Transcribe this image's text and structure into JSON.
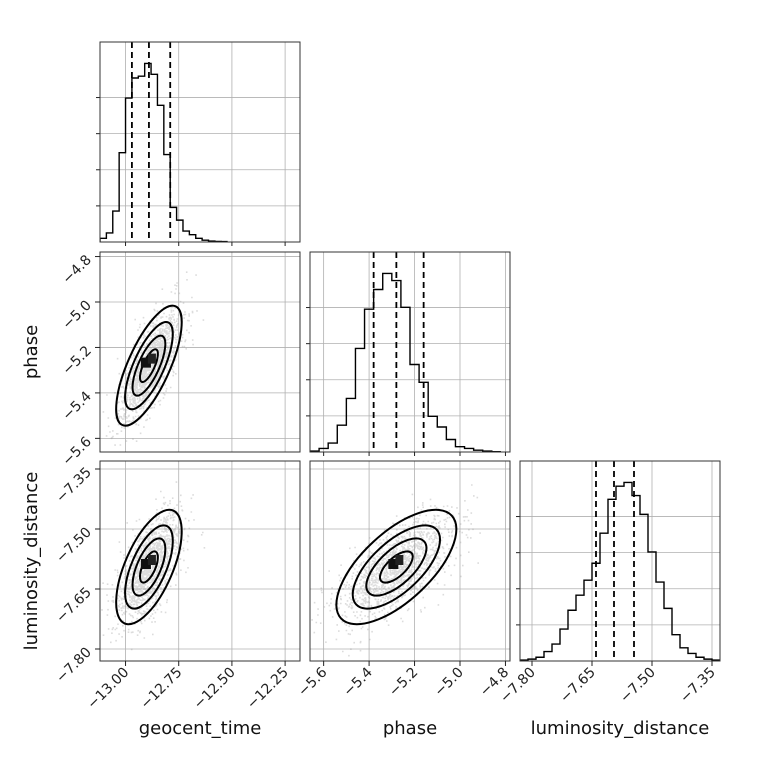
{
  "chart_data": {
    "type": "corner",
    "parameters": [
      {
        "name": "geocent_time",
        "range": [
          -13.12,
          -12.18
        ],
        "ticks": [
          -13.0,
          -12.75,
          -12.5,
          -12.25
        ],
        "tick_labels": [
          "−13.00",
          "−12.75",
          "−12.50",
          "−12.25"
        ],
        "quantiles": [
          -12.97,
          -12.89,
          -12.79
        ],
        "hist_bins": [
          -13.12,
          -13.09,
          -13.06,
          -13.03,
          -13.0,
          -12.97,
          -12.94,
          -12.91,
          -12.88,
          -12.85,
          -12.82,
          -12.79,
          -12.76,
          -12.73,
          -12.7,
          -12.67,
          -12.64,
          -12.61,
          -12.58,
          -12.55,
          -12.52
        ],
        "hist_counts": [
          2,
          5,
          17,
          49,
          79,
          90,
          91,
          98,
          92,
          75,
          48,
          19,
          12,
          6,
          4,
          2,
          1,
          0.5,
          0.3,
          0.2
        ]
      },
      {
        "name": "phase",
        "range": [
          -5.66,
          -4.78
        ],
        "ticks": [
          -5.6,
          -5.4,
          -5.2,
          -5.0,
          -4.8
        ],
        "tick_labels": [
          "−5.6",
          "−5.4",
          "−5.2",
          "−5.0",
          "−4.8"
        ],
        "quantiles": [
          -5.38,
          -5.28,
          -5.16
        ],
        "hist_bins": [
          -5.66,
          -5.62,
          -5.58,
          -5.54,
          -5.5,
          -5.46,
          -5.42,
          -5.38,
          -5.34,
          -5.3,
          -5.26,
          -5.22,
          -5.18,
          -5.14,
          -5.1,
          -5.06,
          -5.02,
          -4.98,
          -4.94,
          -4.9,
          -4.86,
          -4.82
        ],
        "hist_counts": [
          0.5,
          2,
          5,
          15,
          30,
          58,
          80,
          91,
          100,
          96,
          81,
          49,
          39,
          20,
          14,
          7,
          3,
          2,
          1,
          0.5,
          0.2
        ]
      },
      {
        "name": "luminosity_distance",
        "range": [
          -7.83,
          -7.33
        ],
        "ticks": [
          -7.8,
          -7.65,
          -7.5,
          -7.35
        ],
        "tick_labels": [
          "−7.80",
          "−7.65",
          "−7.50",
          "−7.35"
        ],
        "quantiles": [
          -7.64,
          -7.595,
          -7.545
        ],
        "hist_bins": [
          -7.83,
          -7.81,
          -7.79,
          -7.77,
          -7.75,
          -7.73,
          -7.71,
          -7.69,
          -7.67,
          -7.65,
          -7.63,
          -7.61,
          -7.59,
          -7.57,
          -7.55,
          -7.53,
          -7.51,
          -7.49,
          -7.47,
          -7.45,
          -7.43,
          -7.41,
          -7.39,
          -7.37,
          -7.35,
          -7.33
        ],
        "hist_counts": [
          0.5,
          1,
          2,
          5,
          9,
          17,
          27,
          35,
          43,
          52,
          68,
          86,
          93,
          95,
          88,
          78,
          58,
          42,
          28,
          14,
          7,
          4,
          2,
          1,
          0.5
        ]
      }
    ],
    "pairs": [
      {
        "x": "geocent_time",
        "y": "phase",
        "center": [
          -12.89,
          -5.28
        ],
        "sd": [
          0.07,
          0.12
        ],
        "corr": 0.72
      },
      {
        "x": "geocent_time",
        "y": "luminosity_distance",
        "center": [
          -12.89,
          -7.595
        ],
        "sd": [
          0.07,
          0.065
        ],
        "corr": 0.62
      },
      {
        "x": "phase",
        "y": "luminosity_distance",
        "center": [
          -5.28,
          -7.595
        ],
        "sd": [
          0.12,
          0.065
        ],
        "corr": 0.66
      }
    ],
    "grid": true
  }
}
